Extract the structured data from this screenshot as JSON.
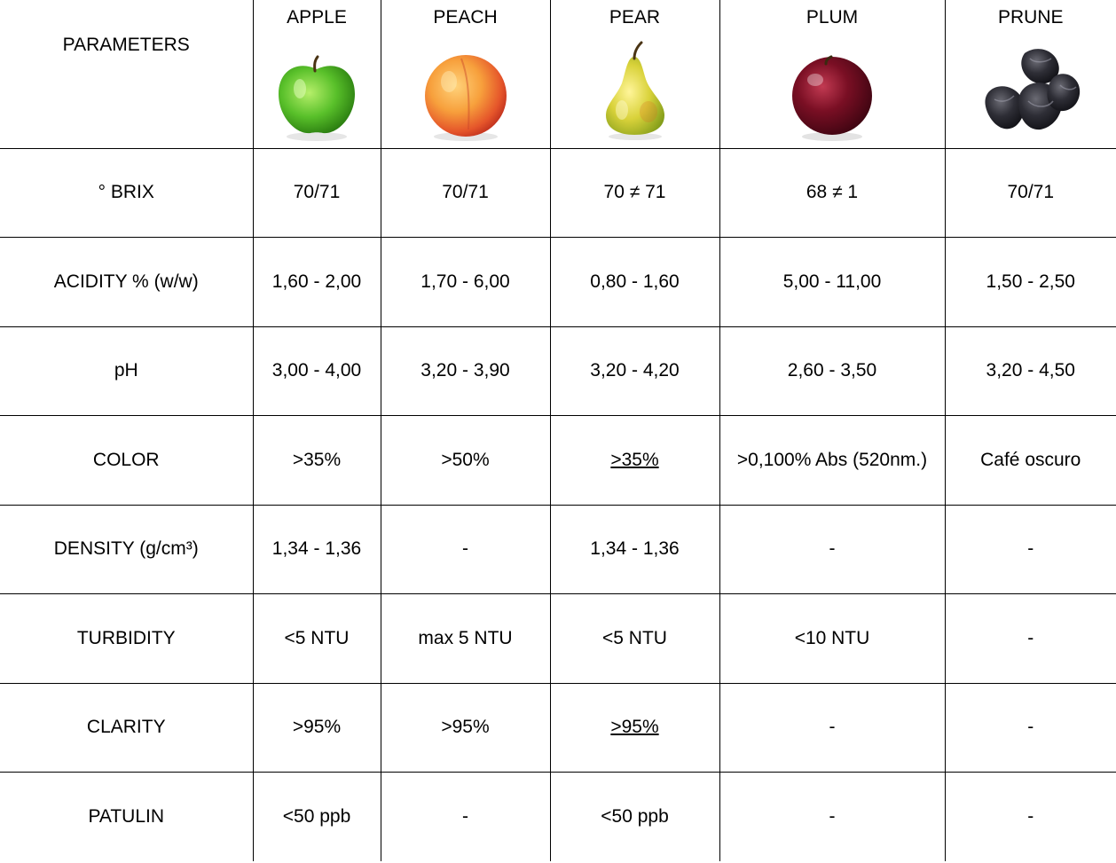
{
  "header": {
    "parameters_label": "PARAMETERS",
    "fruits": [
      {
        "name": "APPLE",
        "icon": "apple-icon"
      },
      {
        "name": "PEACH",
        "icon": "peach-icon"
      },
      {
        "name": "PEAR",
        "icon": "pear-icon"
      },
      {
        "name": "PLUM",
        "icon": "plum-icon"
      },
      {
        "name": "PRUNE",
        "icon": "prune-icon"
      }
    ]
  },
  "rows": [
    {
      "parameter": "° BRIX",
      "values": [
        "70/71",
        "70/71",
        "70 ≠ 71",
        "68 ≠ 1",
        "70/71"
      ]
    },
    {
      "parameter": "ACIDITY % (w/w)",
      "values": [
        "1,60 - 2,00",
        "1,70 - 6,00",
        "0,80 - 1,60",
        "5,00 - 11,00",
        "1,50 - 2,50"
      ]
    },
    {
      "parameter": "pH",
      "values": [
        "3,00 - 4,00",
        "3,20 - 3,90",
        "3,20 - 4,20",
        "2,60 - 3,50",
        "3,20 - 4,50"
      ]
    },
    {
      "parameter": "COLOR",
      "values": [
        ">35%",
        ">50%",
        ">35%",
        ">0,100% Abs (520nm.)",
        "Café oscuro"
      ]
    },
    {
      "parameter": "DENSITY (g/cm³)",
      "values": [
        "1,34 - 1,36",
        "-",
        "1,34 - 1,36",
        "-",
        "-"
      ]
    },
    {
      "parameter": "TURBIDITY",
      "values": [
        "<5 NTU",
        "max 5 NTU",
        "<5 NTU",
        "<10 NTU",
        "-"
      ]
    },
    {
      "parameter": "CLARITY",
      "values": [
        ">95%",
        ">95%",
        ">95%",
        "-",
        "-"
      ]
    },
    {
      "parameter": "PATULIN",
      "values": [
        "<50 ppb",
        "-",
        "<50 ppb",
        "-",
        "-"
      ]
    }
  ]
}
